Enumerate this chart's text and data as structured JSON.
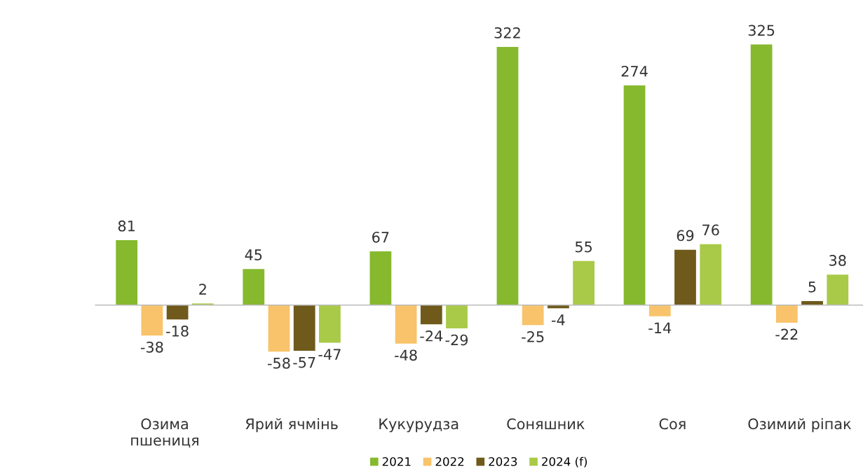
{
  "chart_data": {
    "type": "bar",
    "categories": [
      "Озима\nпшениця",
      "Ярий ячмінь",
      "Кукурудза",
      "Соняшник",
      "Соя",
      "Озимий ріпак"
    ],
    "series": [
      {
        "name": "2021",
        "color": "#86b92e",
        "values": [
          81,
          45,
          67,
          322,
          274,
          325
        ]
      },
      {
        "name": "2022",
        "color": "#f8c36a",
        "values": [
          -38,
          -58,
          -48,
          -25,
          -14,
          -22
        ]
      },
      {
        "name": "2023",
        "color": "#6f5a1c",
        "values": [
          -18,
          -57,
          -24,
          -4,
          69,
          5
        ]
      },
      {
        "name": "2024 (f)",
        "color": "#a8ca48",
        "values": [
          2,
          -47,
          -29,
          55,
          76,
          38
        ]
      }
    ],
    "data_labels": true,
    "legend": "bottom",
    "grid": false
  }
}
